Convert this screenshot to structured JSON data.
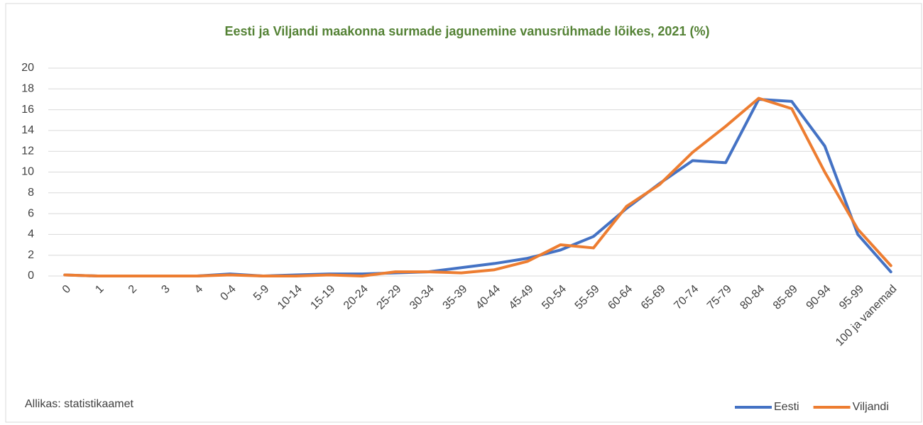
{
  "chart_data": {
    "type": "line",
    "title": "Eesti ja Viljandi maakonna surmade jagunemine vanusrühmade lõikes, 2021 (%)",
    "note": "Allikas: statistikaamet",
    "categories": [
      "0",
      "1",
      "2",
      "3",
      "4",
      "0-4",
      "5-9",
      "10-14",
      "15-19",
      "20-24",
      "25-29",
      "30-34",
      "35-39",
      "40-44",
      "45-49",
      "50-54",
      "55-59",
      "60-64",
      "65-69",
      "70-74",
      "75-79",
      "80-84",
      "85-89",
      "90-94",
      "95-99",
      "100 ja vanemad"
    ],
    "series": [
      {
        "name": "Eesti",
        "color": "#4472c4",
        "values": [
          0.1,
          0,
          0,
          0,
          0,
          0.2,
          0,
          0.1,
          0.2,
          0.2,
          0.3,
          0.4,
          0.8,
          1.2,
          1.7,
          2.5,
          3.8,
          6.5,
          8.9,
          11.1,
          10.9,
          17.0,
          16.8,
          12.5,
          4.0,
          0.4
        ]
      },
      {
        "name": "Viljandi",
        "color": "#ed7d31",
        "values": [
          0.1,
          0,
          0,
          0,
          0,
          0.1,
          0,
          0,
          0.1,
          0,
          0.4,
          0.4,
          0.3,
          0.6,
          1.4,
          3.0,
          2.7,
          6.7,
          8.8,
          11.9,
          14.4,
          17.1,
          16.1,
          10.0,
          4.5,
          1.0
        ]
      }
    ],
    "ylim": [
      0,
      20
    ],
    "yticks": [
      0,
      2,
      4,
      6,
      8,
      10,
      12,
      14,
      16,
      18,
      20
    ],
    "grid": true,
    "legend": "bottom-right"
  }
}
